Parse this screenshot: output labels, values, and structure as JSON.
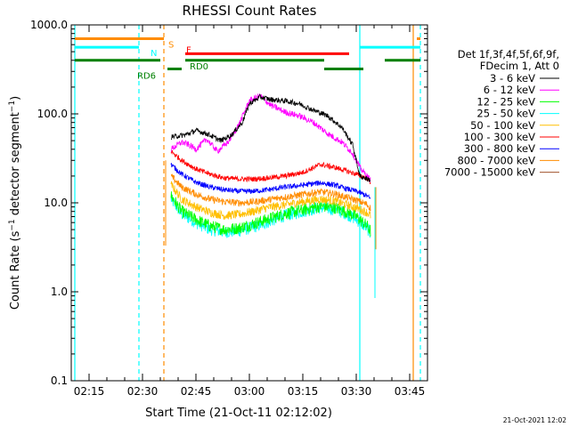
{
  "chart_data": {
    "type": "line",
    "title": "RHESSI Count Rates",
    "xlabel": "Start Time (21-Oct-11 02:12:02)",
    "ylabel": "Count Rate (s⁻¹ detector segment⁻¹)",
    "ylabel_main": "Count Rate (s",
    "ylabel_sup1": "−1",
    "ylabel_mid": " detector segment",
    "ylabel_sup2": "−1",
    "ylabel_end": ")",
    "y_scale": "log",
    "ylim": [
      0.1,
      1000
    ],
    "xlim_minutes": [
      "02:10",
      "03:50"
    ],
    "x_ticks": [
      "02:15",
      "02:30",
      "02:45",
      "03:00",
      "03:15",
      "03:30",
      "03:45"
    ],
    "y_ticks": [
      {
        "value": 0.1,
        "label": "0.1"
      },
      {
        "value": 1,
        "label": "1.0"
      },
      {
        "value": 10,
        "label": "10.0"
      },
      {
        "value": 100,
        "label": "100.0"
      },
      {
        "value": 1000,
        "label": "1000.0"
      }
    ],
    "legend_header": [
      "Det 1f,3f,4f,5f,6f,9f,",
      "FDecim 1, Att 0"
    ],
    "series": [
      {
        "name": "3 - 6 keV",
        "color": "#000000",
        "points": [
          [
            "02:38",
            55
          ],
          [
            "02:42",
            58
          ],
          [
            "02:45",
            65
          ],
          [
            "02:48",
            60
          ],
          [
            "02:52",
            50
          ],
          [
            "02:55",
            58
          ],
          [
            "02:58",
            80
          ],
          [
            "03:00",
            130
          ],
          [
            "03:03",
            155
          ],
          [
            "03:06",
            145
          ],
          [
            "03:10",
            140
          ],
          [
            "03:14",
            130
          ],
          [
            "03:18",
            110
          ],
          [
            "03:22",
            95
          ],
          [
            "03:26",
            70
          ],
          [
            "03:29",
            45
          ],
          [
            "03:31",
            20
          ],
          [
            "03:34",
            18
          ]
        ]
      },
      {
        "name": "6 - 12 keV",
        "color": "#ff00ff",
        "points": [
          [
            "02:38",
            40
          ],
          [
            "02:41",
            48
          ],
          [
            "02:43",
            45
          ],
          [
            "02:45",
            40
          ],
          [
            "02:48",
            52
          ],
          [
            "02:51",
            38
          ],
          [
            "02:54",
            48
          ],
          [
            "02:57",
            75
          ],
          [
            "03:00",
            140
          ],
          [
            "03:03",
            160
          ],
          [
            "03:06",
            125
          ],
          [
            "03:10",
            105
          ],
          [
            "03:14",
            95
          ],
          [
            "03:18",
            80
          ],
          [
            "03:22",
            60
          ],
          [
            "03:26",
            48
          ],
          [
            "03:29",
            36
          ],
          [
            "03:31",
            25
          ],
          [
            "03:34",
            18
          ]
        ]
      },
      {
        "name": "12 - 25 keV",
        "color": "#00ff00",
        "points": [
          [
            "02:38",
            12
          ],
          [
            "02:41",
            8
          ],
          [
            "02:45",
            6.5
          ],
          [
            "02:49",
            5.5
          ],
          [
            "02:53",
            5
          ],
          [
            "02:57",
            5.2
          ],
          [
            "03:01",
            5.8
          ],
          [
            "03:05",
            6.5
          ],
          [
            "03:10",
            7.6
          ],
          [
            "03:15",
            8.3
          ],
          [
            "03:20",
            9.2
          ],
          [
            "03:24",
            8.8
          ],
          [
            "03:27",
            8
          ],
          [
            "03:30",
            7
          ],
          [
            "03:33",
            5.5
          ],
          [
            "03:34",
            4.8
          ]
        ]
      },
      {
        "name": "25 - 50 keV",
        "color": "#00ffff",
        "points": [
          [
            "02:38",
            11
          ],
          [
            "02:41",
            7.5
          ],
          [
            "02:45",
            6
          ],
          [
            "02:49",
            5
          ],
          [
            "02:53",
            4.7
          ],
          [
            "02:57",
            4.8
          ],
          [
            "03:01",
            5.3
          ],
          [
            "03:05",
            6
          ],
          [
            "03:10",
            7.2
          ],
          [
            "03:15",
            8
          ],
          [
            "03:20",
            8.8
          ],
          [
            "03:24",
            8.4
          ],
          [
            "03:27",
            7.6
          ],
          [
            "03:30",
            6.5
          ],
          [
            "03:33",
            5.2
          ],
          [
            "03:34",
            4.5
          ]
        ]
      },
      {
        "name": "50 - 100 keV",
        "color": "#ffbf00",
        "points": [
          [
            "02:38",
            16
          ],
          [
            "02:41",
            11
          ],
          [
            "02:45",
            9
          ],
          [
            "02:49",
            7.8
          ],
          [
            "02:53",
            7.2
          ],
          [
            "02:57",
            7.4
          ],
          [
            "03:01",
            8
          ],
          [
            "03:05",
            8.8
          ],
          [
            "03:10",
            9.5
          ],
          [
            "03:15",
            10.3
          ],
          [
            "03:20",
            11
          ],
          [
            "03:24",
            10.5
          ],
          [
            "03:27",
            9.6
          ],
          [
            "03:30",
            8.8
          ],
          [
            "03:33",
            7.8
          ],
          [
            "03:34",
            7.2
          ]
        ]
      },
      {
        "name": "100 - 300 keV",
        "color": "#ff0000",
        "points": [
          [
            "02:38",
            38
          ],
          [
            "02:41",
            30
          ],
          [
            "02:45",
            24
          ],
          [
            "02:49",
            21
          ],
          [
            "02:53",
            19
          ],
          [
            "02:57",
            18.5
          ],
          [
            "03:01",
            18.5
          ],
          [
            "03:05",
            19
          ],
          [
            "03:10",
            20
          ],
          [
            "03:15",
            22
          ],
          [
            "03:20",
            27
          ],
          [
            "03:24",
            25
          ],
          [
            "03:27",
            23
          ],
          [
            "03:30",
            21
          ],
          [
            "03:33",
            19
          ],
          [
            "03:34",
            17
          ]
        ]
      },
      {
        "name": "300 - 800 keV",
        "color": "#0000ff",
        "points": [
          [
            "02:38",
            27
          ],
          [
            "02:41",
            21
          ],
          [
            "02:45",
            17
          ],
          [
            "02:49",
            15
          ],
          [
            "02:53",
            14
          ],
          [
            "02:57",
            13.5
          ],
          [
            "03:01",
            13.5
          ],
          [
            "03:05",
            14
          ],
          [
            "03:10",
            15
          ],
          [
            "03:15",
            15.8
          ],
          [
            "03:20",
            16.8
          ],
          [
            "03:24",
            15.8
          ],
          [
            "03:27",
            14.5
          ],
          [
            "03:30",
            13.5
          ],
          [
            "03:33",
            12
          ],
          [
            "03:34",
            11
          ]
        ]
      },
      {
        "name": "800 - 7000 keV",
        "color": "#ff8c00",
        "points": [
          [
            "02:38",
            20
          ],
          [
            "02:41",
            15
          ],
          [
            "02:45",
            12.5
          ],
          [
            "02:49",
            11
          ],
          [
            "02:53",
            10.3
          ],
          [
            "02:57",
            10
          ],
          [
            "03:01",
            10.2
          ],
          [
            "03:05",
            10.8
          ],
          [
            "03:10",
            11.6
          ],
          [
            "03:15",
            12.4
          ],
          [
            "03:20",
            13.3
          ],
          [
            "03:24",
            12.6
          ],
          [
            "03:27",
            11.6
          ],
          [
            "03:30",
            10.7
          ],
          [
            "03:33",
            9.6
          ],
          [
            "03:34",
            8.7
          ]
        ]
      },
      {
        "name": "7000 - 15000 keV",
        "color": "#a0522d",
        "points": []
      }
    ],
    "annotations": [
      {
        "label": "S",
        "color": "#ff8c00",
        "y": 700,
        "segments": [
          [
            "02:11",
            "02:36"
          ],
          [
            "03:47",
            "03:48"
          ]
        ],
        "label_at": "02:36"
      },
      {
        "label": "N",
        "color": "#00ffff",
        "y": 560,
        "segments": [
          [
            "02:11",
            "02:29"
          ],
          [
            "03:31",
            "03:48"
          ]
        ],
        "label_at": "02:31"
      },
      {
        "label": "F",
        "color": "#ff0000",
        "y": 475,
        "segments": [
          [
            "02:42",
            "03:28"
          ]
        ],
        "label_at": "02:41"
      },
      {
        "label": "RD0",
        "color": "#008000",
        "y": 400,
        "segments": [
          [
            "02:11",
            "02:35"
          ],
          [
            "02:42",
            "03:21"
          ],
          [
            "03:38",
            "03:48"
          ]
        ],
        "label_at": "02:42"
      },
      {
        "label": "RD6",
        "color": "#008000",
        "y": 320,
        "segments": [
          [
            "02:37",
            "02:41"
          ],
          [
            "03:21",
            "03:32"
          ]
        ],
        "label_at": "02:35"
      }
    ],
    "vlines": [
      {
        "time": "02:11",
        "color": "#00ffff",
        "style": "solid"
      },
      {
        "time": "02:29",
        "color": "#00ffff",
        "style": "dashed"
      },
      {
        "time": "02:36",
        "color": "#ff8c00",
        "style": "dashed"
      },
      {
        "time": "03:31",
        "color": "#00ffff",
        "style": "solid"
      },
      {
        "time": "03:46",
        "color": "#ff8c00",
        "style": "solid"
      },
      {
        "time": "03:48",
        "color": "#00ffff",
        "style": "dashed"
      }
    ],
    "data_window": [
      "02:37",
      "03:35"
    ],
    "grid": false,
    "legend_position": "right"
  },
  "timestamp": "21-Oct-2021 12:02"
}
